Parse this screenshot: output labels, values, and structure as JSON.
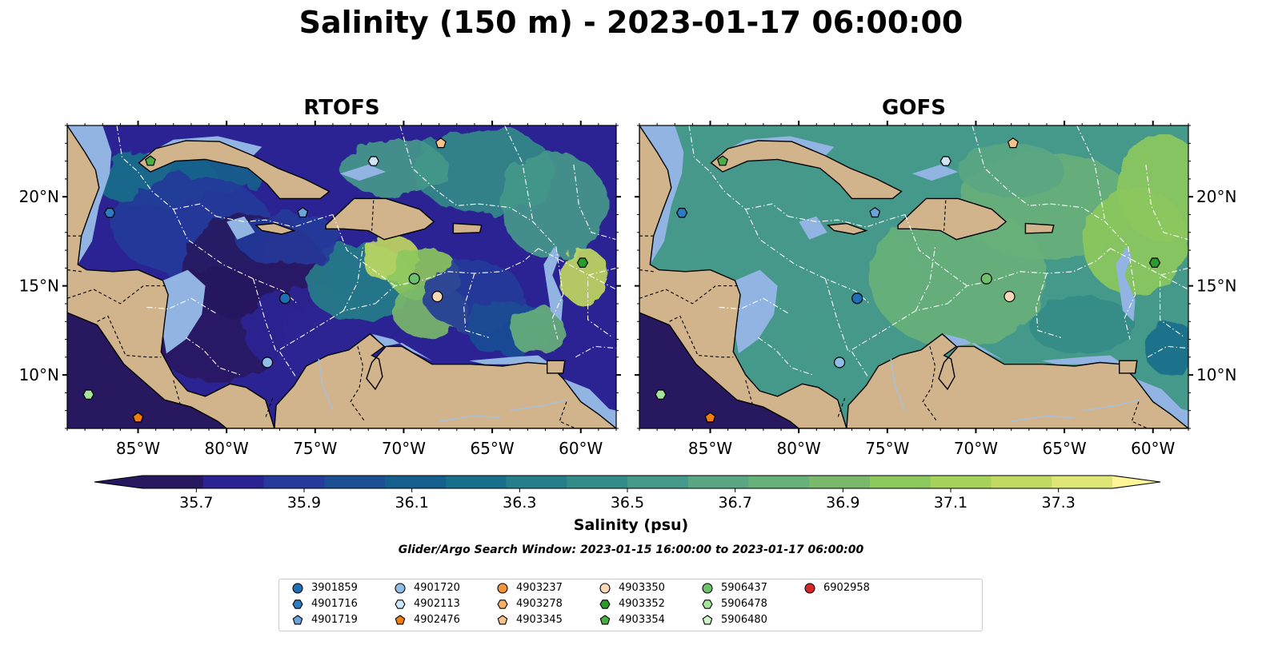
{
  "title": "Salinity (150 m) - 2023-01-17 06:00:00",
  "panels": [
    {
      "title": "RTOFS",
      "model": "rtofs"
    },
    {
      "title": "GOFS",
      "model": "gofs"
    }
  ],
  "map": {
    "lon_range": [
      -89,
      -58
    ],
    "lat_range": [
      7,
      24
    ],
    "lon_ticks": [
      "85°W",
      "80°W",
      "75°W",
      "70°W",
      "65°W",
      "60°W"
    ],
    "lon_tick_values": [
      -85,
      -80,
      -75,
      -70,
      -65,
      -60
    ],
    "lat_ticks": [
      "10°N",
      "15°N",
      "20°N"
    ],
    "lat_tick_values": [
      10,
      15,
      20
    ],
    "land_color": "#d2b48c",
    "shallow_water_color": "#92b4e2"
  },
  "colorbar": {
    "label": "Salinity (psu)",
    "range": [
      35.6,
      37.4
    ],
    "ticks": [
      "35.7",
      "35.9",
      "36.1",
      "36.3",
      "36.5",
      "36.7",
      "36.9",
      "37.1",
      "37.3"
    ],
    "colors": [
      "#28185f",
      "#2b2393",
      "#253a9a",
      "#1b4e93",
      "#145f8d",
      "#186f8b",
      "#257e89",
      "#338c87",
      "#45998a",
      "#5aa682",
      "#68b07a",
      "#7ab96b",
      "#8dc85d",
      "#a5d25a",
      "#c1da61",
      "#dde677"
    ],
    "extend": "both"
  },
  "search_window": "Glider/Argo Search Window: 2023-01-15 16:00:00 to 2023-01-17 06:00:00",
  "legend": [
    {
      "id": "3901859",
      "marker": "circle",
      "color": "#1f6fb4"
    },
    {
      "id": "4901716",
      "marker": "hexagon",
      "color": "#2f7bbf"
    },
    {
      "id": "4901719",
      "marker": "pentagon",
      "color": "#6aa3d8"
    },
    {
      "id": "4901720",
      "marker": "circle",
      "color": "#8fbee6"
    },
    {
      "id": "4902113",
      "marker": "hexagon",
      "color": "#cfe4f6"
    },
    {
      "id": "4902476",
      "marker": "pentagon",
      "color": "#f07d0f"
    },
    {
      "id": "4903237",
      "marker": "circle",
      "color": "#f2953a"
    },
    {
      "id": "4903278",
      "marker": "hexagon",
      "color": "#f5b063"
    },
    {
      "id": "4903345",
      "marker": "pentagon",
      "color": "#f6c28b"
    },
    {
      "id": "4903350",
      "marker": "circle",
      "color": "#f9d8b6"
    },
    {
      "id": "4903352",
      "marker": "hexagon",
      "color": "#2c9a2c"
    },
    {
      "id": "4903354",
      "marker": "pentagon",
      "color": "#4aae45"
    },
    {
      "id": "5906437",
      "marker": "circle",
      "color": "#6cc26a"
    },
    {
      "id": "5906478",
      "marker": "hexagon",
      "color": "#a6e39b"
    },
    {
      "id": "5906480",
      "marker": "pentagon",
      "color": "#cff2c8"
    },
    {
      "id": "6902958",
      "marker": "circle",
      "color": "#d62728"
    }
  ],
  "floats": [
    {
      "id": "4903354",
      "lon": -84.3,
      "lat": 22.0
    },
    {
      "id": "4901716",
      "lon": -86.6,
      "lat": 19.1
    },
    {
      "id": "4902113",
      "lon": -71.7,
      "lat": 22.0
    },
    {
      "id": "4903345",
      "lon": -67.9,
      "lat": 23.0
    },
    {
      "id": "4901719",
      "lon": -75.7,
      "lat": 19.1
    },
    {
      "id": "4903352",
      "lon": -59.9,
      "lat": 16.3
    },
    {
      "id": "5906437",
      "lon": -69.4,
      "lat": 15.4
    },
    {
      "id": "4903350",
      "lon": -68.1,
      "lat": 14.4
    },
    {
      "id": "3901859",
      "lon": -76.7,
      "lat": 14.3
    },
    {
      "id": "4901720",
      "lon": -77.7,
      "lat": 10.7
    },
    {
      "id": "5906478",
      "lon": -87.8,
      "lat": 8.9
    },
    {
      "id": "4902476",
      "lon": -85.0,
      "lat": 7.6
    }
  ]
}
